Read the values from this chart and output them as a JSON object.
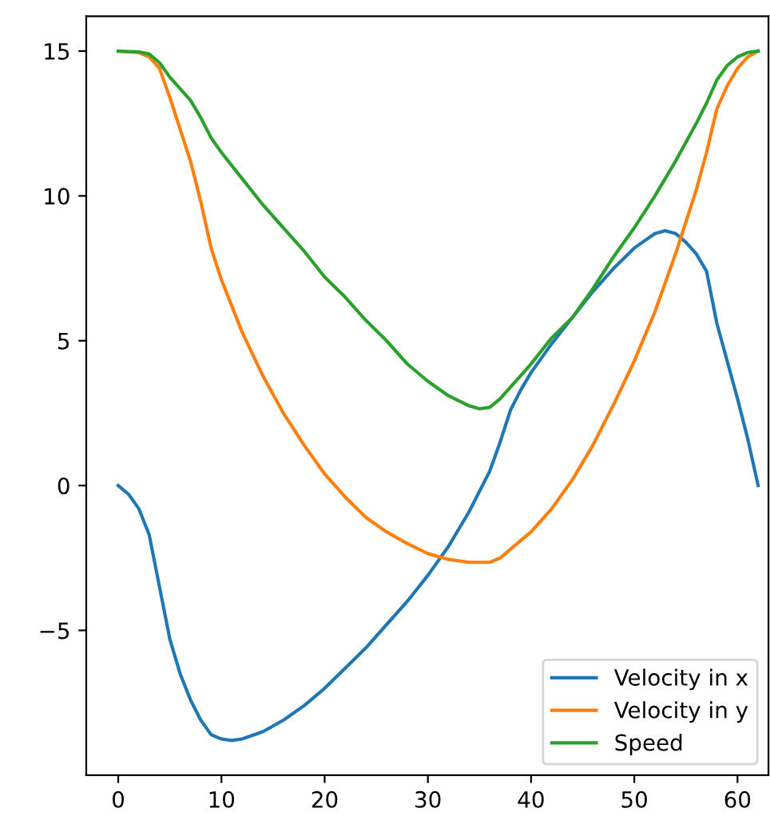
{
  "chart_data": {
    "type": "line",
    "series": [
      {
        "name": "Velocity in x",
        "color": "#1f77b4",
        "x": [
          0,
          1,
          2,
          3,
          4,
          5,
          6,
          7,
          8,
          9,
          10,
          11,
          12,
          14,
          16,
          18,
          20,
          22,
          24,
          26,
          28,
          30,
          32,
          34,
          35,
          36,
          37,
          38,
          39,
          40,
          42,
          44,
          46,
          48,
          50,
          52,
          53,
          54,
          55,
          56,
          57,
          58,
          59,
          60,
          61,
          62
        ],
        "values": [
          0,
          -0.3,
          -0.8,
          -1.7,
          -3.5,
          -5.3,
          -6.5,
          -7.4,
          -8.1,
          -8.6,
          -8.75,
          -8.8,
          -8.75,
          -8.5,
          -8.1,
          -7.6,
          -7.0,
          -6.3,
          -5.6,
          -4.8,
          -4.0,
          -3.1,
          -2.1,
          -0.9,
          -0.2,
          0.5,
          1.5,
          2.6,
          3.3,
          3.9,
          4.9,
          5.8,
          6.7,
          7.5,
          8.2,
          8.7,
          8.8,
          8.7,
          8.4,
          8.0,
          7.4,
          5.6,
          4.3,
          3.0,
          1.6,
          0
        ]
      },
      {
        "name": "Velocity in y",
        "color": "#ff7f0e",
        "x": [
          0,
          2,
          3,
          4,
          5,
          6,
          7,
          8,
          9,
          10,
          12,
          14,
          16,
          18,
          20,
          22,
          24,
          26,
          28,
          30,
          32,
          34,
          36,
          37,
          38,
          40,
          42,
          44,
          46,
          48,
          50,
          52,
          54,
          56,
          57,
          58,
          59,
          60,
          61,
          62
        ],
        "values": [
          15,
          14.95,
          14.8,
          14.4,
          13.4,
          12.3,
          11.2,
          9.8,
          8.2,
          7.1,
          5.3,
          3.8,
          2.5,
          1.4,
          0.4,
          -0.4,
          -1.1,
          -1.6,
          -2.0,
          -2.35,
          -2.55,
          -2.65,
          -2.65,
          -2.5,
          -2.2,
          -1.6,
          -0.8,
          0.2,
          1.4,
          2.8,
          4.3,
          6.0,
          8.0,
          10.2,
          11.5,
          13.0,
          13.8,
          14.4,
          14.8,
          15
        ]
      },
      {
        "name": "Speed",
        "color": "#2ca02c",
        "x": [
          0,
          2,
          3,
          4,
          5,
          6,
          7,
          8,
          9,
          10,
          12,
          14,
          16,
          18,
          20,
          22,
          24,
          26,
          28,
          30,
          32,
          34,
          35,
          36,
          37,
          38,
          40,
          42,
          44,
          46,
          48,
          50,
          52,
          54,
          56,
          57,
          58,
          59,
          60,
          61,
          62
        ],
        "values": [
          15,
          14.97,
          14.9,
          14.6,
          14.1,
          13.7,
          13.3,
          12.7,
          12.0,
          11.5,
          10.6,
          9.7,
          8.9,
          8.1,
          7.2,
          6.5,
          5.7,
          5.0,
          4.2,
          3.6,
          3.1,
          2.75,
          2.65,
          2.7,
          3.0,
          3.4,
          4.2,
          5.1,
          5.8,
          6.8,
          7.9,
          8.9,
          10.0,
          11.2,
          12.5,
          13.2,
          14.0,
          14.5,
          14.8,
          14.95,
          15
        ]
      }
    ],
    "xlim": [
      -3.1,
      63
    ],
    "ylim": [
      -10,
      16.2
    ],
    "xticks": [
      0,
      10,
      20,
      30,
      40,
      50,
      60
    ],
    "yticks": [
      {
        "value": -5,
        "label": "−5"
      },
      0,
      5,
      10,
      15
    ],
    "legend": "lower right",
    "grid": false,
    "marker": "none",
    "line_style": "solid"
  }
}
